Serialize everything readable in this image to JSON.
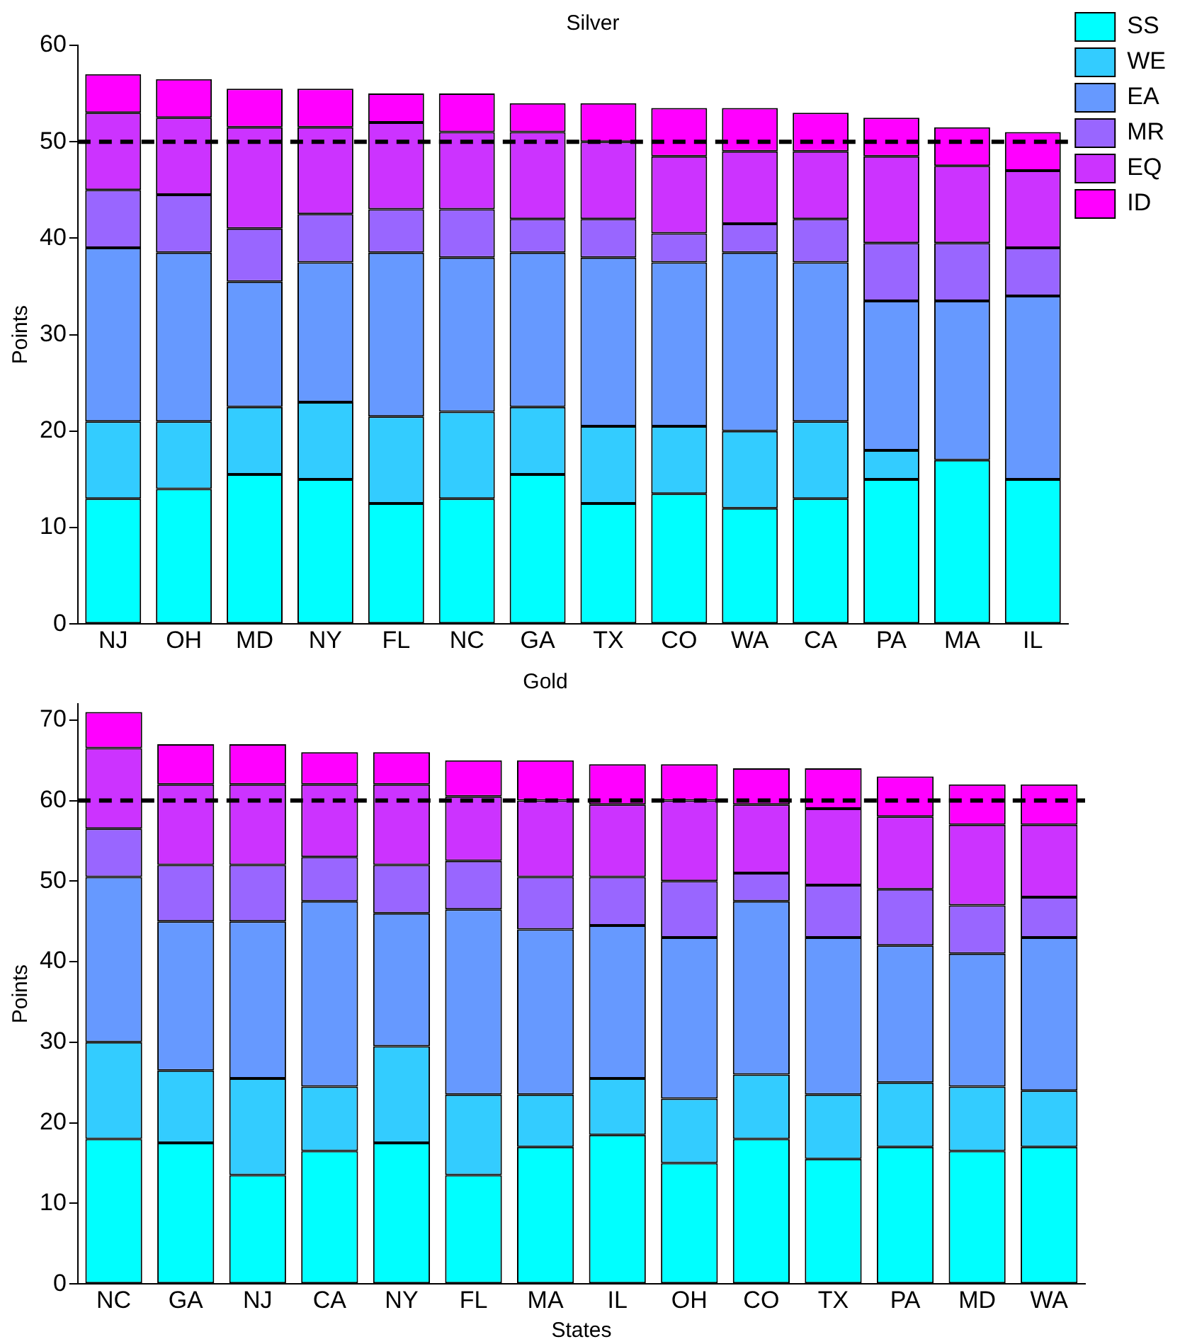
{
  "chart_data": [
    {
      "type": "bar",
      "title": "Silver",
      "ylabel": "Points",
      "stacked": true,
      "legend": "top right",
      "grid": false,
      "categories": [
        "NJ",
        "OH",
        "MD",
        "NY",
        "FL",
        "NC",
        "GA",
        "TX",
        "CO",
        "WA",
        "CA",
        "PA",
        "MA",
        "IL"
      ],
      "ylim": [
        0,
        60
      ],
      "yticks": [
        0,
        10,
        20,
        30,
        40,
        50,
        60
      ],
      "ref_lines": [
        {
          "axis": "y",
          "value": 50,
          "color": "#000000",
          "line_style": "dashed"
        }
      ],
      "series": [
        {
          "name": "SS",
          "color": "#00ffff",
          "values": [
            13,
            14,
            15.5,
            15,
            12.5,
            13,
            15.5,
            12.5,
            13.5,
            12,
            13,
            15,
            17,
            15
          ]
        },
        {
          "name": "WE",
          "color": "#33ccff",
          "values": [
            8,
            7,
            7,
            8,
            9,
            9,
            7,
            8,
            7,
            8,
            8,
            3,
            0,
            0
          ]
        },
        {
          "name": "EA",
          "color": "#6699ff",
          "values": [
            18,
            17.5,
            13,
            14.5,
            17,
            16,
            16,
            17.5,
            17,
            18.5,
            16.5,
            15.5,
            16.5,
            19
          ]
        },
        {
          "name": "MR",
          "color": "#9966ff",
          "values": [
            6,
            6,
            5.5,
            5,
            4.5,
            5,
            3.5,
            4,
            3,
            3,
            4.5,
            6,
            6,
            5
          ]
        },
        {
          "name": "EQ",
          "color": "#cc33ff",
          "values": [
            8,
            8,
            10.5,
            9,
            9,
            8,
            9,
            8,
            8,
            7.5,
            7,
            9,
            8,
            8
          ]
        },
        {
          "name": "ID",
          "color": "#ff00ff",
          "values": [
            4,
            4,
            4,
            4,
            3,
            4,
            3,
            4,
            5,
            4.5,
            4,
            4,
            4,
            4
          ]
        }
      ]
    },
    {
      "type": "bar",
      "title": "Gold",
      "ylabel": "Points",
      "xlabel": "States",
      "stacked": true,
      "grid": false,
      "categories": [
        "NC",
        "GA",
        "NJ",
        "CA",
        "NY",
        "FL",
        "MA",
        "IL",
        "OH",
        "CO",
        "TX",
        "PA",
        "MD",
        "WA"
      ],
      "ylim": [
        0,
        72
      ],
      "yticks": [
        0,
        10,
        20,
        30,
        40,
        50,
        60,
        70
      ],
      "ref_lines": [
        {
          "axis": "y",
          "value": 60,
          "color": "#000000",
          "line_style": "dashed"
        }
      ],
      "series": [
        {
          "color": "#00ffff",
          "values": [
            18,
            17.5,
            13.5,
            16.5,
            17.5,
            13.5,
            17,
            18.5,
            15,
            18,
            15.5,
            17,
            16.5,
            17
          ]
        },
        {
          "color": "#33ccff",
          "values": [
            12,
            9,
            12,
            8,
            12,
            10,
            6.5,
            7,
            8,
            8,
            8,
            8,
            8,
            7
          ]
        },
        {
          "color": "#6699ff",
          "values": [
            20.5,
            18.5,
            19.5,
            23,
            16.5,
            23,
            20.5,
            19,
            20,
            21.5,
            19.5,
            17,
            16.5,
            19
          ]
        },
        {
          "color": "#9966ff",
          "values": [
            6,
            7,
            7,
            5.5,
            6,
            6,
            6.5,
            6,
            7,
            3.5,
            6.5,
            7,
            6,
            5
          ]
        },
        {
          "color": "#cc33ff",
          "values": [
            10,
            10,
            10,
            9,
            10,
            8,
            9.5,
            9,
            10,
            8.5,
            9.5,
            9,
            10,
            9
          ]
        },
        {
          "color": "#ff00ff",
          "values": [
            4.5,
            5,
            5,
            4,
            4,
            4.5,
            5,
            5,
            4.5,
            4.5,
            5,
            5,
            5,
            5
          ]
        }
      ]
    }
  ]
}
